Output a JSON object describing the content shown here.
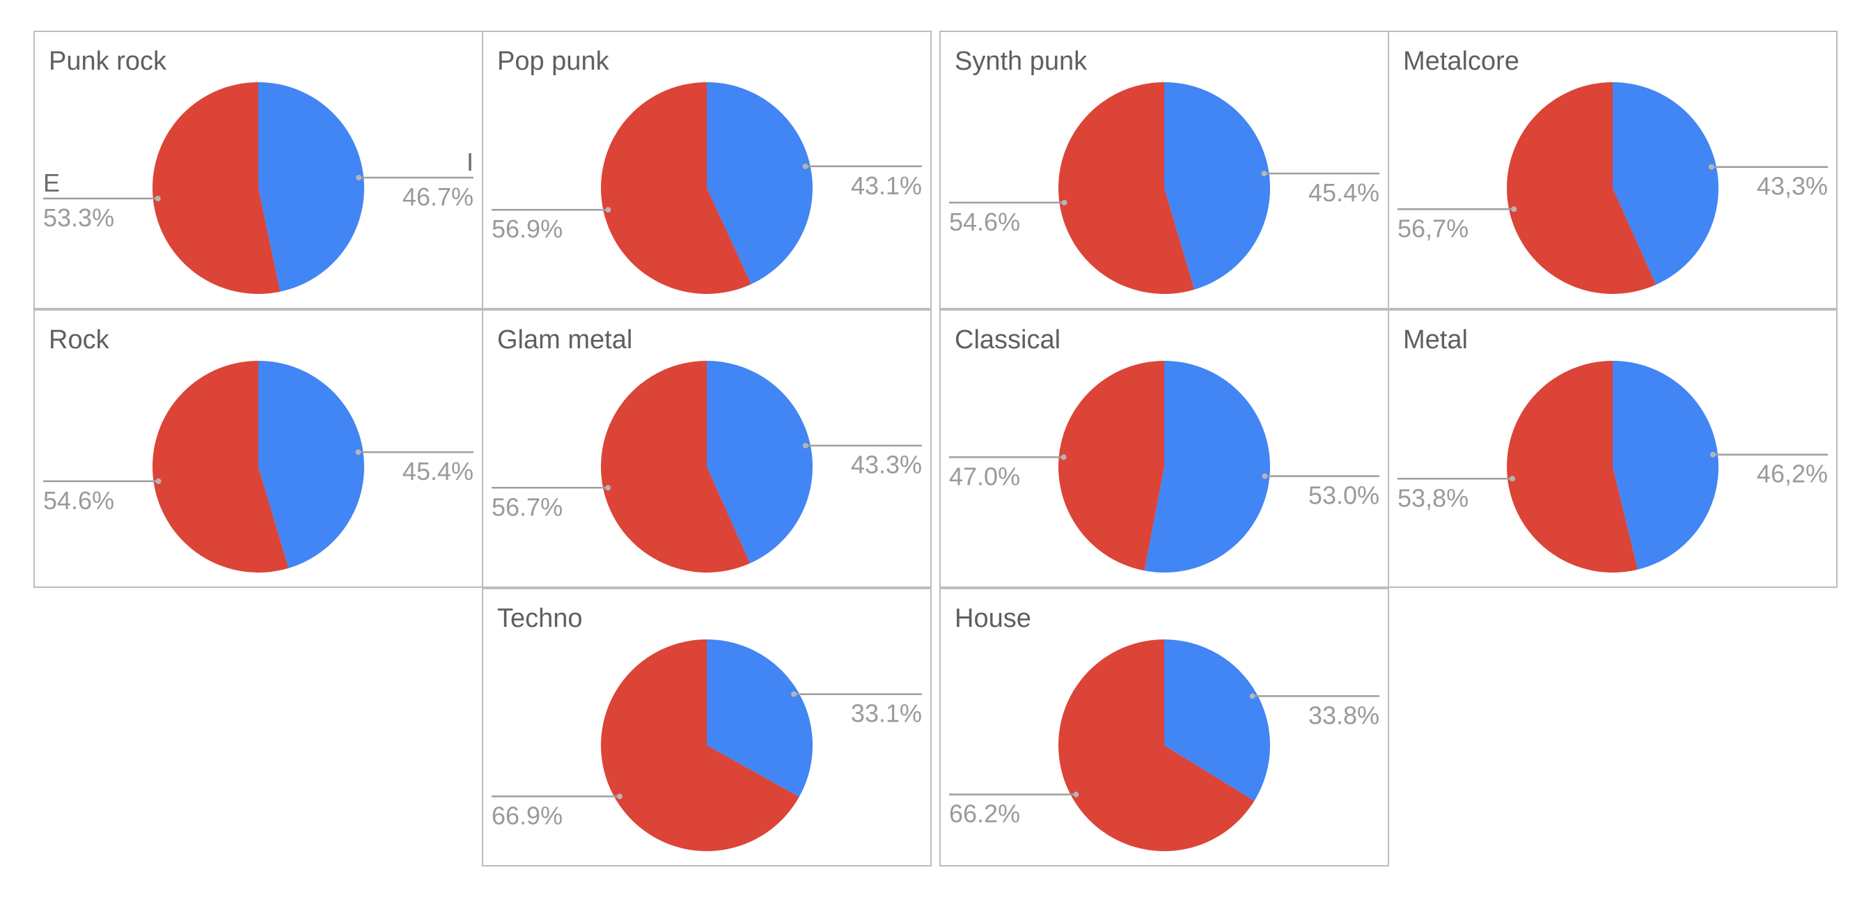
{
  "chart_data": [
    {
      "type": "pie",
      "title": "Punk rock",
      "labels": [
        "I",
        "E"
      ],
      "values": [
        46.7,
        53.3
      ],
      "value_labels": [
        "46.7%",
        "53.3%"
      ],
      "legend": [
        "I",
        "E"
      ],
      "colors": [
        "#4285f4",
        "#db4437"
      ]
    },
    {
      "type": "pie",
      "title": "Pop punk",
      "labels": [
        "I",
        "E"
      ],
      "values": [
        43.1,
        56.9
      ],
      "value_labels": [
        "43.1%",
        "56.9%"
      ],
      "colors": [
        "#4285f4",
        "#db4437"
      ]
    },
    {
      "type": "pie",
      "title": "Synth punk",
      "labels": [
        "I",
        "E"
      ],
      "values": [
        45.4,
        54.6
      ],
      "value_labels": [
        "45.4%",
        "54.6%"
      ],
      "colors": [
        "#4285f4",
        "#db4437"
      ]
    },
    {
      "type": "pie",
      "title": "Metalcore",
      "labels": [
        "I",
        "E"
      ],
      "values": [
        43.3,
        56.7
      ],
      "value_labels": [
        "43,3%",
        "56,7%"
      ],
      "colors": [
        "#4285f4",
        "#db4437"
      ]
    },
    {
      "type": "pie",
      "title": "Rock",
      "labels": [
        "I",
        "E"
      ],
      "values": [
        45.4,
        54.6
      ],
      "value_labels": [
        "45.4%",
        "54.6%"
      ],
      "colors": [
        "#4285f4",
        "#db4437"
      ]
    },
    {
      "type": "pie",
      "title": "Glam metal",
      "labels": [
        "I",
        "E"
      ],
      "values": [
        43.3,
        56.7
      ],
      "value_labels": [
        "43.3%",
        "56.7%"
      ],
      "colors": [
        "#4285f4",
        "#db4437"
      ]
    },
    {
      "type": "pie",
      "title": "Classical",
      "labels": [
        "I",
        "E"
      ],
      "values": [
        53.0,
        47.0
      ],
      "value_labels": [
        "53.0%",
        "47.0%"
      ],
      "colors": [
        "#4285f4",
        "#db4437"
      ]
    },
    {
      "type": "pie",
      "title": "Metal",
      "labels": [
        "I",
        "E"
      ],
      "values": [
        46.2,
        53.8
      ],
      "value_labels": [
        "46,2%",
        "53,8%"
      ],
      "colors": [
        "#4285f4",
        "#db4437"
      ]
    },
    {
      "type": "pie",
      "title": "Techno",
      "labels": [
        "I",
        "E"
      ],
      "values": [
        33.1,
        66.9
      ],
      "value_labels": [
        "33.1%",
        "66.9%"
      ],
      "colors": [
        "#4285f4",
        "#db4437"
      ]
    },
    {
      "type": "pie",
      "title": "House",
      "labels": [
        "I",
        "E"
      ],
      "values": [
        33.8,
        66.2
      ],
      "value_labels": [
        "33.8%",
        "66.2%"
      ],
      "colors": [
        "#4285f4",
        "#db4437"
      ]
    }
  ]
}
